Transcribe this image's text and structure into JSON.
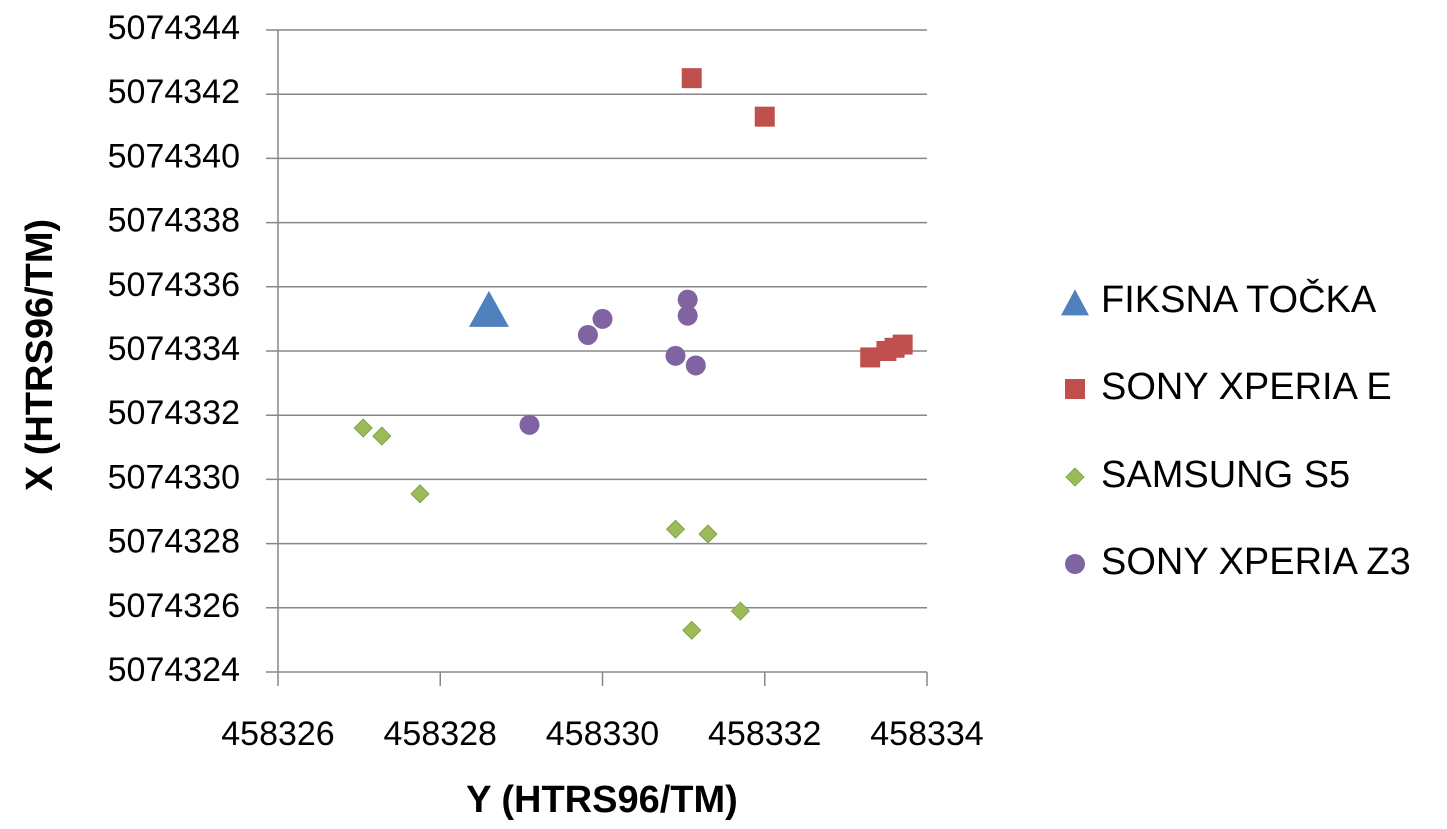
{
  "chart_data": {
    "type": "scatter",
    "title": "",
    "xlabel": "Y (HTRS96/TM)",
    "ylabel": "X (HTRS96/TM)",
    "xlim": [
      458326,
      458334
    ],
    "ylim": [
      5074324,
      5074344
    ],
    "xticks": [
      458326,
      458328,
      458330,
      458332,
      458334
    ],
    "yticks": [
      5074324,
      5074326,
      5074328,
      5074330,
      5074332,
      5074334,
      5074336,
      5074338,
      5074340,
      5074342,
      5074344
    ],
    "grid": "horizontal",
    "legend_position": "right",
    "series": [
      {
        "name": "FIKSNA TOČKA",
        "marker": "triangle",
        "color": "#4f81bd",
        "points": [
          [
            458328.6,
            5074335.2
          ]
        ]
      },
      {
        "name": "SONY XPERIA E",
        "marker": "square",
        "color": "#c0504d",
        "points": [
          [
            458331.1,
            5074342.5
          ],
          [
            458332.0,
            5074341.3
          ],
          [
            458333.3,
            5074333.8
          ],
          [
            458333.5,
            5074334.0
          ],
          [
            458333.6,
            5074334.1
          ],
          [
            458333.7,
            5074334.2
          ]
        ]
      },
      {
        "name": "SAMSUNG S5",
        "marker": "diamond",
        "color": "#9bbb59",
        "points": [
          [
            458327.05,
            5074331.6
          ],
          [
            458327.28,
            5074331.35
          ],
          [
            458327.75,
            5074329.55
          ],
          [
            458330.9,
            5074328.45
          ],
          [
            458331.3,
            5074328.3
          ],
          [
            458331.1,
            5074325.3
          ],
          [
            458331.7,
            5074325.9
          ]
        ]
      },
      {
        "name": "SONY XPERIA Z3",
        "marker": "circle",
        "color": "#8064a2",
        "points": [
          [
            458331.05,
            5074335.6
          ],
          [
            458331.05,
            5074335.1
          ],
          [
            458330.0,
            5074335.0
          ],
          [
            458329.82,
            5074334.5
          ],
          [
            458330.9,
            5074333.85
          ],
          [
            458331.15,
            5074333.55
          ],
          [
            458329.1,
            5074331.7
          ]
        ]
      }
    ]
  }
}
